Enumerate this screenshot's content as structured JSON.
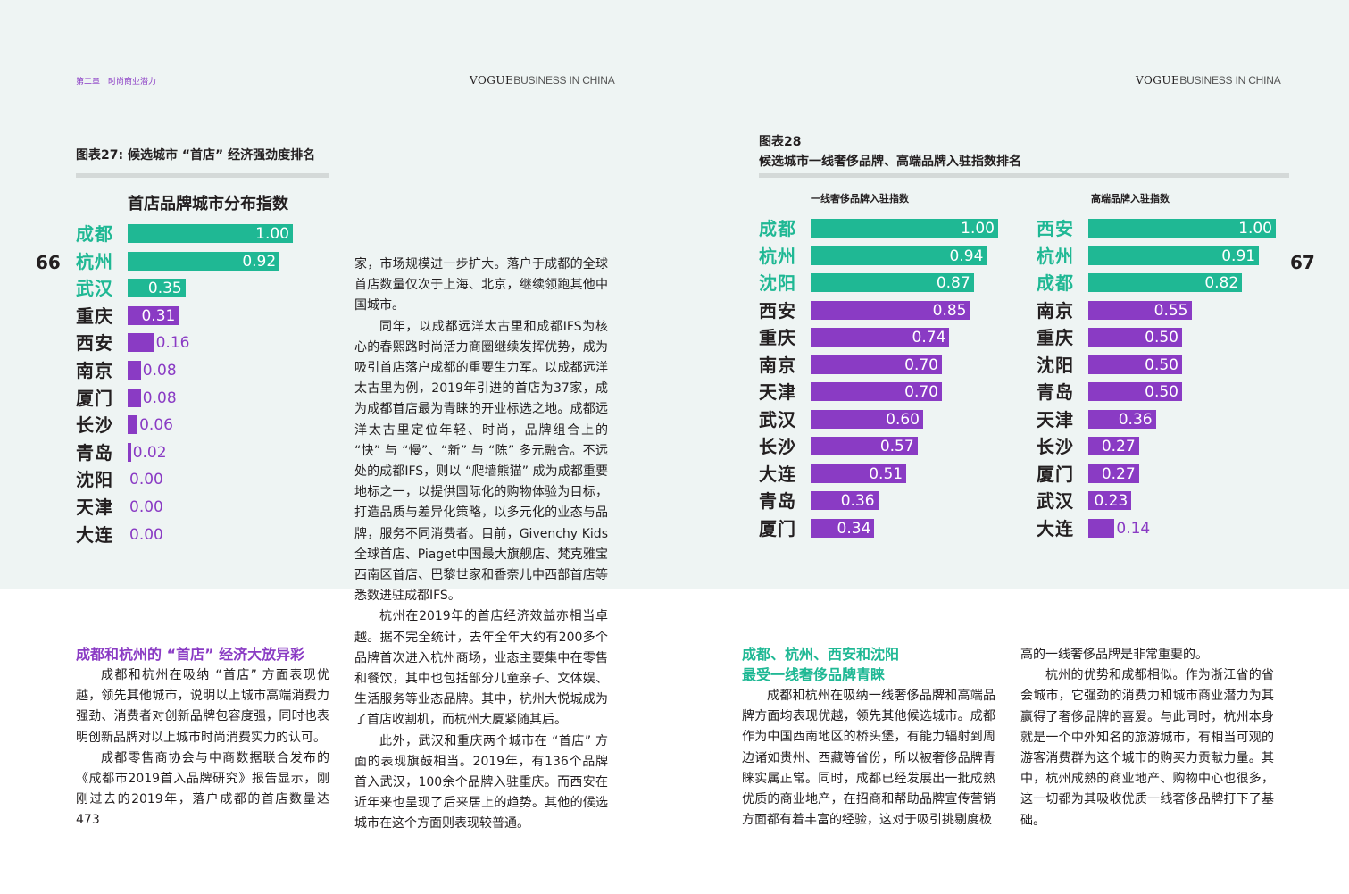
{
  "header": {
    "running_head": "第二章　时尚商业潜力",
    "brand_bold": "VOGUE",
    "brand_thin": "BUSINESS IN CHINA",
    "page_left": "66",
    "page_right": "67"
  },
  "colors": {
    "green": "#1fb894",
    "purple": "#8a3bc4",
    "band": "#eef4f3",
    "rule": "#d4d9d8"
  },
  "fig27": {
    "title": "图表27: 候选城市 “首店” 经济强劲度排名",
    "chart_data": {
      "type": "bar",
      "title": "首店品牌城市分布指数",
      "categories": [
        "成都",
        "杭州",
        "武汉",
        "重庆",
        "西安",
        "南京",
        "厦门",
        "长沙",
        "青岛",
        "沈阳",
        "天津",
        "大连"
      ],
      "values": [
        1.0,
        0.92,
        0.35,
        0.31,
        0.16,
        0.08,
        0.08,
        0.06,
        0.02,
        0.0,
        0.0,
        0.0
      ],
      "labels": [
        "1.00",
        "0.92",
        "0.35",
        "0.31",
        "0.16",
        "0.08",
        "0.08",
        "0.06",
        "0.02",
        "0.00",
        "0.00",
        "0.00"
      ],
      "highlight_count": 3
    }
  },
  "fig28": {
    "title_line1": "图表28",
    "title_line2": "候选城市一线奢侈品牌、高端品牌入驻指数排名",
    "chart_data": [
      {
        "type": "bar",
        "title": "一线奢侈品牌入驻指数",
        "categories": [
          "成都",
          "杭州",
          "沈阳",
          "西安",
          "重庆",
          "南京",
          "天津",
          "武汉",
          "长沙",
          "大连",
          "青岛",
          "厦门"
        ],
        "values": [
          1.0,
          0.94,
          0.87,
          0.85,
          0.74,
          0.7,
          0.7,
          0.6,
          0.57,
          0.51,
          0.36,
          0.34
        ],
        "labels": [
          "1.00",
          "0.94",
          "0.87",
          "0.85",
          "0.74",
          "0.70",
          "0.70",
          "0.60",
          "0.57",
          "0.51",
          "0.36",
          "0.34"
        ],
        "highlight_count": 3
      },
      {
        "type": "bar",
        "title": "高端品牌入驻指数",
        "categories": [
          "西安",
          "杭州",
          "成都",
          "南京",
          "重庆",
          "沈阳",
          "青岛",
          "天津",
          "长沙",
          "厦门",
          "武汉",
          "大连"
        ],
        "values": [
          1.0,
          0.91,
          0.82,
          0.55,
          0.5,
          0.5,
          0.5,
          0.36,
          0.27,
          0.27,
          0.23,
          0.14
        ],
        "labels": [
          "1.00",
          "0.91",
          "0.82",
          "0.55",
          "0.50",
          "0.50",
          "0.50",
          "0.36",
          "0.27",
          "0.27",
          "0.23",
          "0.14"
        ],
        "highlight_count": 3
      }
    ]
  },
  "article_left": {
    "heading": "成都和杭州的 “首店” 经济大放异彩",
    "paragraphs": [
      "成都和杭州在吸纳 “首店” 方面表现优越，领先其他城市，说明以上城市高端消费力强劲、消费者对创新品牌包容度强，同时也表明创新品牌对以上城市时尚消费实力的认可。",
      "成都零售商协会与中商数据联合发布的《成都市2019首入品牌研究》报告显示，刚刚过去的2019年，落户成都的首店数量达473"
    ]
  },
  "article_middle": {
    "paragraphs": [
      "家，市场规模进一步扩大。落户于成都的全球首店数量仅次于上海、北京，继续领跑其他中国城市。",
      "同年，以成都远洋太古里和成都IFS为核心的春熙路时尚活力商圈继续发挥优势，成为吸引首店落户成都的重要生力军。以成都远洋太古里为例，2019年引进的首店为37家，成为成都首店最为青睐的开业标选之地。成都远洋太古里定位年轻、时尚，品牌组合上的 “快” 与 “慢”、“新” 与 “陈” 多元融合。不远处的成都IFS，则以 “爬墙熊猫” 成为成都重要地标之一，以提供国际化的购物体验为目标，打造品质与差异化策略，以多元化的业态与品牌，服务不同消费者。目前，Givenchy Kids全球首店、Piaget中国最大旗舰店、梵克雅宝西南区首店、巴黎世家和香奈儿中西部首店等悉数进驻成都IFS。",
      "杭州在2019年的首店经济效益亦相当卓越。据不完全统计，去年全年大约有200多个品牌首次进入杭州商场，业态主要集中在零售和餐饮，其中也包括部分儿童亲子、文体娱、生活服务等业态品牌。其中，杭州大悦城成为了首店收割机，而杭州大厦紧随其后。",
      "此外，武汉和重庆两个城市在 “首店” 方面的表现旗鼓相当。2019年，有136个品牌首入武汉，100余个品牌入驻重庆。而西安在近年来也呈现了后来居上的趋势。其他的候选城市在这个方面则表现较普通。"
    ]
  },
  "article_right1": {
    "heading_line1": "成都、杭州、西安和沈阳",
    "heading_line2": "最受一线奢侈品牌青睐",
    "paragraphs": [
      "成都和杭州在吸纳一线奢侈品牌和高端品牌方面均表现优越，领先其他候选城市。成都作为中国西南地区的桥头堡，有能力辐射到周边诸如贵州、西藏等省份，所以被奢侈品牌青睐实属正常。同时，成都已经发展出一批成熟优质的商业地产，在招商和帮助品牌宣传营销方面都有着丰富的经验，这对于吸引挑剔度极"
    ]
  },
  "article_right2": {
    "paragraphs": [
      "高的一线奢侈品牌是非常重要的。",
      "杭州的优势和成都相似。作为浙江省的省会城市，它强劲的消费力和城市商业潜力为其赢得了奢侈品牌的喜爱。与此同时，杭州本身就是一个中外知名的旅游城市，有相当可观的游客消费群为这个城市的购买力贡献力量。其中，杭州成熟的商业地产、购物中心也很多，这一切都为其吸收优质一线奢侈品牌打下了基础。"
    ]
  }
}
